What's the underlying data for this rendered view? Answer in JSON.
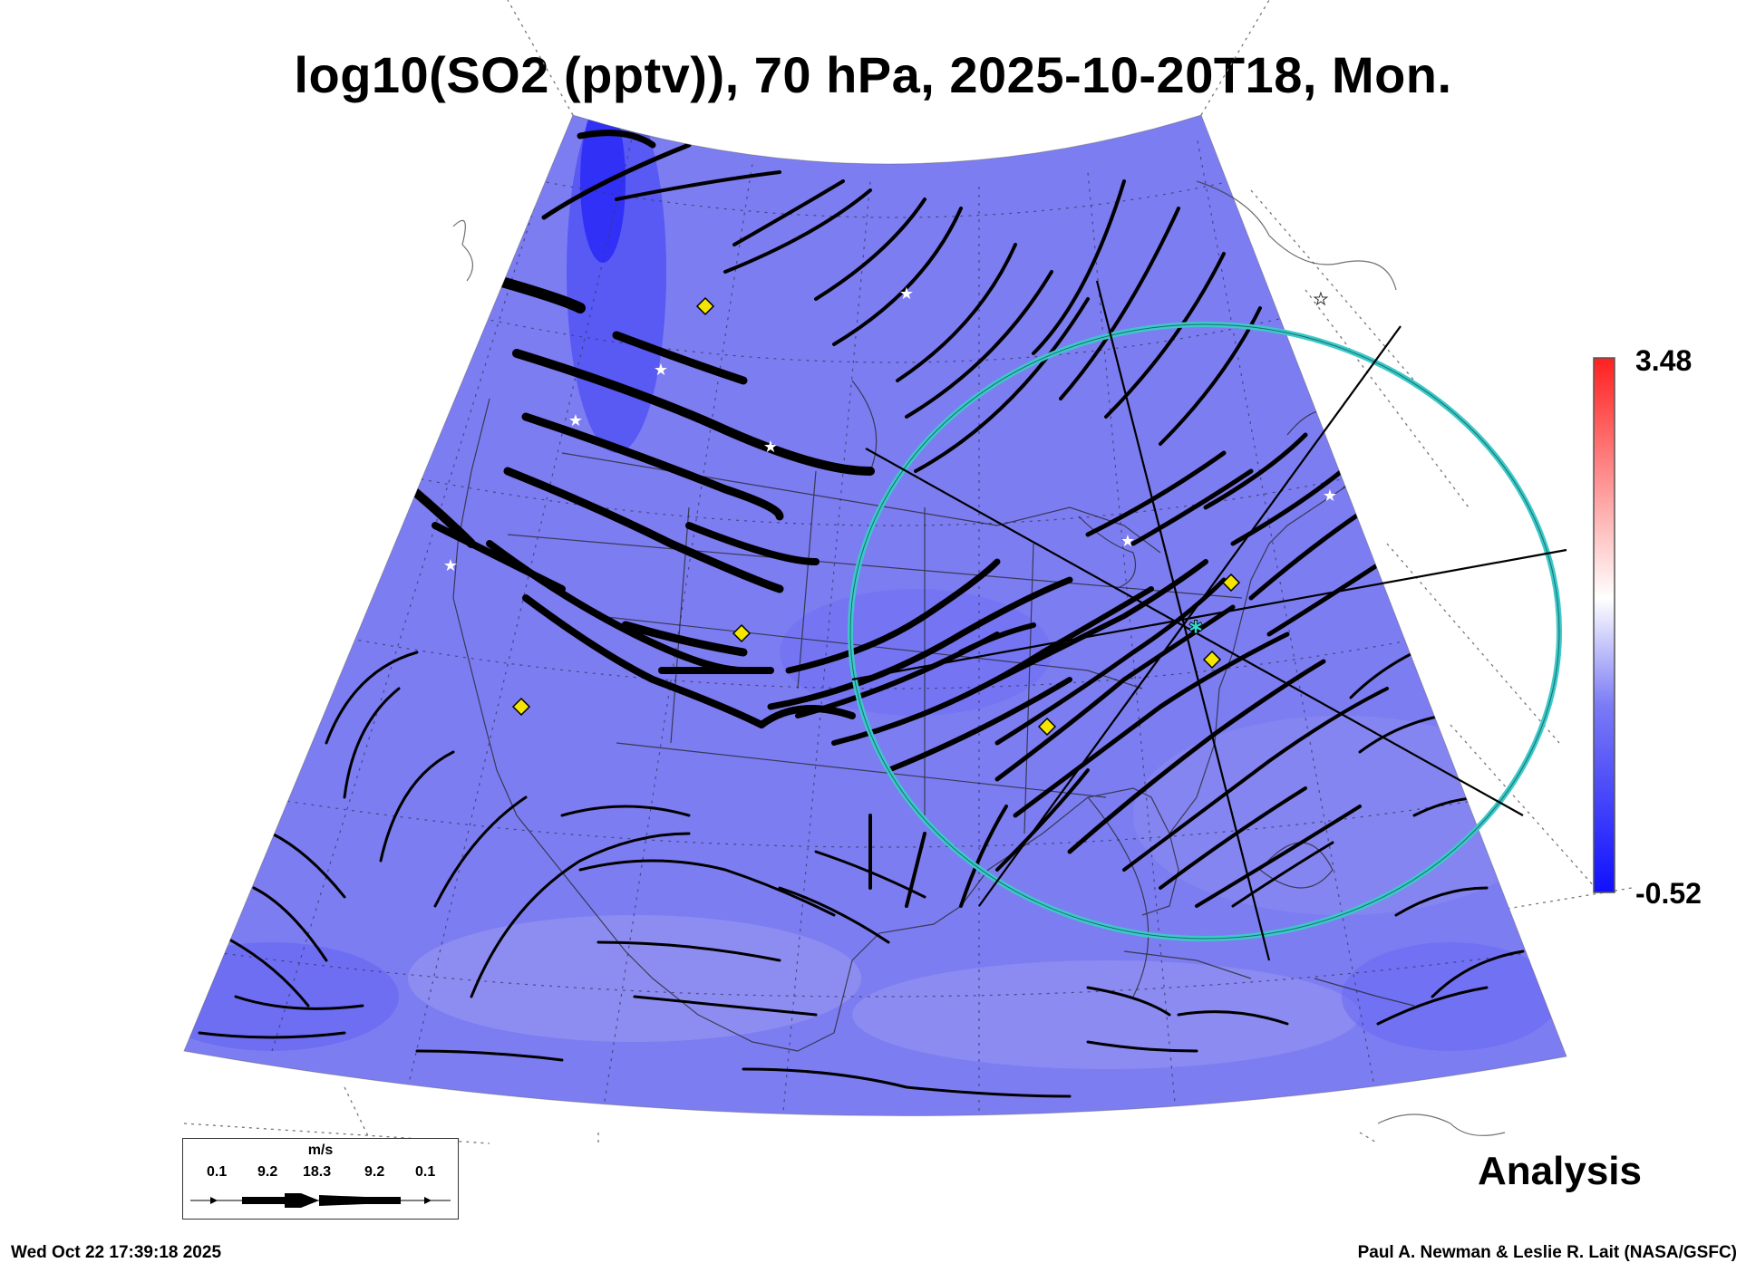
{
  "title": "log10(SO2 (pptv)), 70 hPa, 2025-10-20T18, Mon.",
  "colorbar": {
    "max_label": "3.48",
    "min_label": "-0.52",
    "colors": [
      "#1010ff",
      "#7b7bf5",
      "#ffffff",
      "#ff2020"
    ]
  },
  "field_color": "#7d7df2",
  "range_ring_color": "#3cc8c8",
  "analysis_label": "Analysis",
  "legend": {
    "unit": "m/s",
    "values": [
      "0.1",
      "9.2",
      "18.3",
      "9.2",
      "0.1"
    ]
  },
  "footer": {
    "timestamp": "Wed Oct 22 17:39:18 2025",
    "credit": "Paul A. Newman & Leslie R. Lait (NASA/GSFC)"
  },
  "markers": {
    "yellow_diamond_icon": 6,
    "white_star_icon": 8,
    "cyan_center_star_icon": 1
  }
}
